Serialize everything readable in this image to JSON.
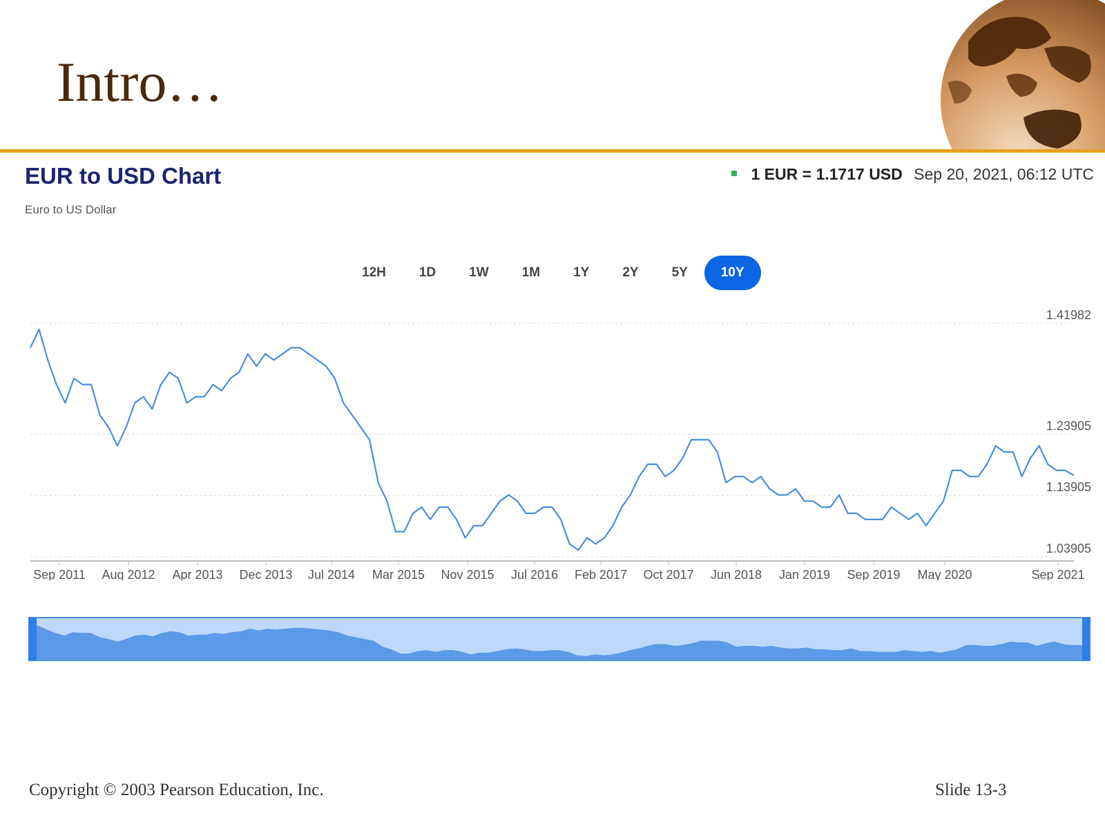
{
  "slide": {
    "title": "Intro…",
    "footer_left": "Copyright © 2003 Pearson Education, Inc.",
    "footer_right": "Slide 13-3",
    "accent_color": "#e8a11e",
    "title_color": "#4a2a0c",
    "decoration_icon": "globe-icon"
  },
  "header": {
    "title": "EUR to USD Chart",
    "subtitle": "Euro to US Dollar",
    "rate": "1 EUR = 1.1717 USD",
    "timestamp": "Sep 20, 2021, 06:12 UTC",
    "status_color": "#2bb24c"
  },
  "range_buttons": [
    {
      "label": "12H",
      "active": false
    },
    {
      "label": "1D",
      "active": false
    },
    {
      "label": "1W",
      "active": false
    },
    {
      "label": "1M",
      "active": false
    },
    {
      "label": "1Y",
      "active": false
    },
    {
      "label": "2Y",
      "active": false
    },
    {
      "label": "5Y",
      "active": false
    },
    {
      "label": "10Y",
      "active": true
    }
  ],
  "chart_data": {
    "type": "line",
    "title": "EUR to USD Chart",
    "subtitle": "Euro to US Dollar",
    "line_color": "#4a8ddf",
    "grid": true,
    "ylim": [
      1.03905,
      1.41982
    ],
    "y_ticks": [
      1.41982,
      1.23905,
      1.13905,
      1.03905
    ],
    "x_tick_labels": [
      "Sep 2011",
      "Aug 2012",
      "Apr 2013",
      "Dec 2013",
      "Jul 2014",
      "Mar 2015",
      "Nov 2015",
      "Jul 2016",
      "Feb 2017",
      "Oct 2017",
      "Jun 2018",
      "Jan 2019",
      "Sep 2019",
      "May 2020",
      "Sep 2021"
    ],
    "x_range": [
      "2011-09",
      "2021-09"
    ],
    "series": [
      {
        "x": [
          "2011-09",
          "2011-10",
          "2011-11",
          "2011-12",
          "2012-01",
          "2012-02",
          "2012-03",
          "2012-04",
          "2012-05",
          "2012-06",
          "2012-07",
          "2012-08",
          "2012-09",
          "2012-10",
          "2012-11",
          "2012-12",
          "2013-01",
          "2013-02",
          "2013-03",
          "2013-04",
          "2013-05",
          "2013-06",
          "2013-07",
          "2013-08",
          "2013-09",
          "2013-10",
          "2013-11",
          "2013-12",
          "2014-01",
          "2014-02",
          "2014-03",
          "2014-04",
          "2014-05",
          "2014-06",
          "2014-07",
          "2014-08",
          "2014-09",
          "2014-10",
          "2014-11",
          "2014-12",
          "2015-01",
          "2015-02",
          "2015-03",
          "2015-04",
          "2015-05",
          "2015-06",
          "2015-07",
          "2015-08",
          "2015-09",
          "2015-10",
          "2015-11",
          "2015-12",
          "2016-01",
          "2016-02",
          "2016-03",
          "2016-04",
          "2016-05",
          "2016-06",
          "2016-07",
          "2016-08",
          "2016-09",
          "2016-10",
          "2016-11",
          "2016-12",
          "2017-01",
          "2017-02",
          "2017-03",
          "2017-04",
          "2017-05",
          "2017-06",
          "2017-07",
          "2017-08",
          "2017-09",
          "2017-10",
          "2017-11",
          "2017-12",
          "2018-01",
          "2018-02",
          "2018-03",
          "2018-04",
          "2018-05",
          "2018-06",
          "2018-07",
          "2018-08",
          "2018-09",
          "2018-10",
          "2018-11",
          "2018-12",
          "2019-01",
          "2019-02",
          "2019-03",
          "2019-04",
          "2019-05",
          "2019-06",
          "2019-07",
          "2019-08",
          "2019-09",
          "2019-10",
          "2019-11",
          "2019-12",
          "2020-01",
          "2020-02",
          "2020-03",
          "2020-04",
          "2020-05",
          "2020-06",
          "2020-07",
          "2020-08",
          "2020-09",
          "2020-10",
          "2020-11",
          "2020-12",
          "2021-01",
          "2021-02",
          "2021-03",
          "2021-04",
          "2021-05",
          "2021-06",
          "2021-07",
          "2021-08",
          "2021-09"
        ],
        "values": [
          1.38,
          1.41,
          1.36,
          1.32,
          1.29,
          1.33,
          1.32,
          1.32,
          1.27,
          1.25,
          1.22,
          1.25,
          1.29,
          1.3,
          1.28,
          1.32,
          1.34,
          1.33,
          1.29,
          1.3,
          1.3,
          1.32,
          1.31,
          1.33,
          1.34,
          1.37,
          1.35,
          1.37,
          1.36,
          1.37,
          1.38,
          1.38,
          1.37,
          1.36,
          1.35,
          1.33,
          1.29,
          1.27,
          1.25,
          1.23,
          1.16,
          1.13,
          1.08,
          1.08,
          1.11,
          1.12,
          1.1,
          1.12,
          1.12,
          1.1,
          1.07,
          1.09,
          1.09,
          1.11,
          1.13,
          1.14,
          1.13,
          1.11,
          1.11,
          1.12,
          1.12,
          1.1,
          1.06,
          1.05,
          1.07,
          1.06,
          1.07,
          1.09,
          1.12,
          1.14,
          1.17,
          1.19,
          1.19,
          1.17,
          1.18,
          1.2,
          1.23,
          1.23,
          1.23,
          1.21,
          1.16,
          1.17,
          1.17,
          1.16,
          1.17,
          1.15,
          1.14,
          1.14,
          1.15,
          1.13,
          1.13,
          1.12,
          1.12,
          1.14,
          1.11,
          1.11,
          1.1,
          1.1,
          1.1,
          1.12,
          1.11,
          1.1,
          1.11,
          1.09,
          1.11,
          1.13,
          1.18,
          1.18,
          1.17,
          1.17,
          1.19,
          1.22,
          1.21,
          1.21,
          1.17,
          1.2,
          1.22,
          1.19,
          1.18,
          1.18,
          1.1717
        ]
      }
    ]
  }
}
